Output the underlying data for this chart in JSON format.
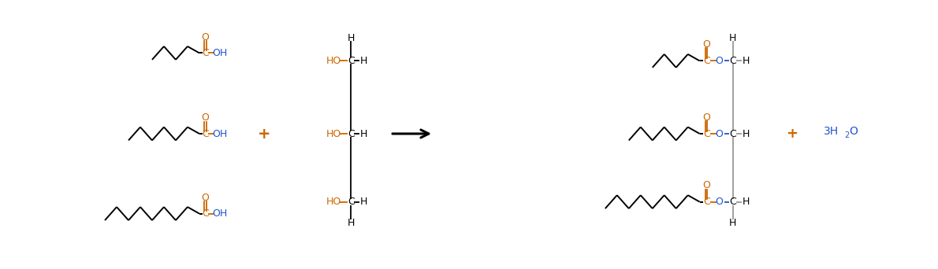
{
  "bg_color": "#ffffff",
  "chain_color": "#000000",
  "black": "#000000",
  "blue": "#2255cc",
  "orange": "#cc6600",
  "gray": "#999999",
  "arrow_color": "#000000",
  "fig_width": 11.9,
  "fig_height": 3.42,
  "dpi": 100,
  "xlim": [
    0,
    119
  ],
  "ylim": [
    0,
    34.2
  ]
}
